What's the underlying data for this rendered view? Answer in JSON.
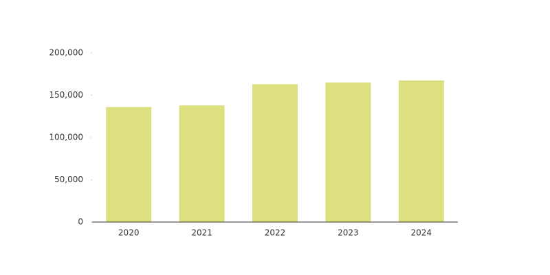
{
  "chart_data": {
    "type": "bar",
    "categories": [
      "2020",
      "2021",
      "2022",
      "2023",
      "2024"
    ],
    "values": [
      136000,
      138000,
      163000,
      165000,
      167500
    ],
    "color": "#dce07e",
    "ylim": [
      0,
      200000
    ],
    "yticks": [
      0,
      {
        "value": 50000,
        "label": "50,000"
      },
      {
        "value": 100000,
        "label": "100,000"
      },
      {
        "value": 150000,
        "label": "150,000"
      },
      {
        "value": 200000,
        "label": "200,000"
      }
    ],
    "grid": false
  }
}
